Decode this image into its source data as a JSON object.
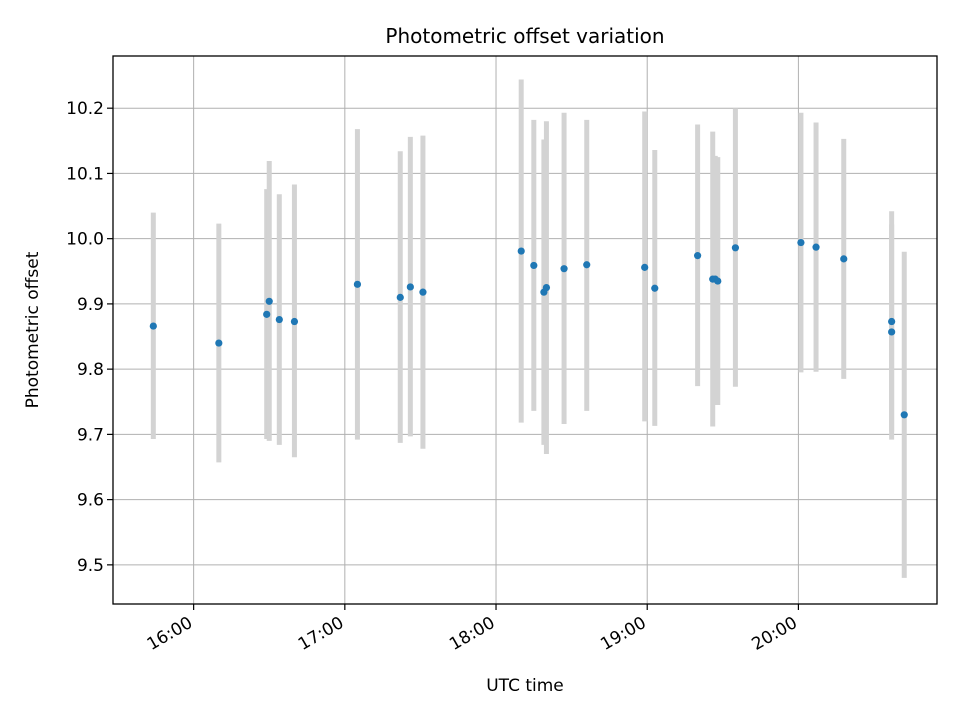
{
  "chart_data": {
    "type": "scatter",
    "title": "Photometric offset variation",
    "xlabel": "UTC time",
    "ylabel": "Photometric offset",
    "x_ticks": [
      "16:00",
      "17:00",
      "18:00",
      "19:00",
      "20:00"
    ],
    "y_ticks": [
      "9.5",
      "9.6",
      "9.7",
      "9.8",
      "9.9",
      "10.0",
      "10.1",
      "10.2"
    ],
    "xlim": [
      "15:28",
      "20:55"
    ],
    "ylim": [
      9.44,
      10.28
    ],
    "grid": true,
    "colors": {
      "marker": "#1f77b4",
      "errorbar": "#d3d3d3",
      "grid": "#b0b0b0"
    },
    "points": [
      {
        "x": "15:44",
        "y": 9.866,
        "y_low": 9.693,
        "y_high": 10.04
      },
      {
        "x": "16:10",
        "y": 9.84,
        "y_low": 9.657,
        "y_high": 10.023
      },
      {
        "x": "16:29",
        "y": 9.884,
        "y_low": 9.693,
        "y_high": 10.076
      },
      {
        "x": "16:30",
        "y": 9.904,
        "y_low": 9.69,
        "y_high": 10.119
      },
      {
        "x": "16:34",
        "y": 9.876,
        "y_low": 9.684,
        "y_high": 10.068
      },
      {
        "x": "16:40",
        "y": 9.873,
        "y_low": 9.665,
        "y_high": 10.083
      },
      {
        "x": "17:05",
        "y": 9.93,
        "y_low": 9.692,
        "y_high": 10.168
      },
      {
        "x": "17:22",
        "y": 9.91,
        "y_low": 9.687,
        "y_high": 10.134
      },
      {
        "x": "17:26",
        "y": 9.926,
        "y_low": 9.697,
        "y_high": 10.156
      },
      {
        "x": "17:31",
        "y": 9.918,
        "y_low": 9.678,
        "y_high": 10.158
      },
      {
        "x": "18:10",
        "y": 9.981,
        "y_low": 9.718,
        "y_high": 10.244
      },
      {
        "x": "18:15",
        "y": 9.959,
        "y_low": 9.736,
        "y_high": 10.182
      },
      {
        "x": "18:19",
        "y": 9.918,
        "y_low": 9.684,
        "y_high": 10.152
      },
      {
        "x": "18:20",
        "y": 9.925,
        "y_low": 9.67,
        "y_high": 10.18
      },
      {
        "x": "18:27",
        "y": 9.954,
        "y_low": 9.716,
        "y_high": 10.193
      },
      {
        "x": "18:36",
        "y": 9.96,
        "y_low": 9.736,
        "y_high": 10.182
      },
      {
        "x": "18:59",
        "y": 9.956,
        "y_low": 9.72,
        "y_high": 10.195
      },
      {
        "x": "19:03",
        "y": 9.924,
        "y_low": 9.713,
        "y_high": 10.136
      },
      {
        "x": "19:20",
        "y": 9.974,
        "y_low": 9.774,
        "y_high": 10.175
      },
      {
        "x": "19:26",
        "y": 9.938,
        "y_low": 9.712,
        "y_high": 10.164
      },
      {
        "x": "19:27",
        "y": 9.938,
        "y_low": 9.745,
        "y_high": 10.127
      },
      {
        "x": "19:28",
        "y": 9.935,
        "y_low": 9.745,
        "y_high": 10.125
      },
      {
        "x": "19:35",
        "y": 9.986,
        "y_low": 9.773,
        "y_high": 10.2
      },
      {
        "x": "20:01",
        "y": 9.994,
        "y_low": 9.795,
        "y_high": 10.193
      },
      {
        "x": "20:07",
        "y": 9.987,
        "y_low": 9.796,
        "y_high": 10.178
      },
      {
        "x": "20:18",
        "y": 9.969,
        "y_low": 9.785,
        "y_high": 10.153
      },
      {
        "x": "20:37",
        "y": 9.873,
        "y_low": 9.704,
        "y_high": 10.042
      },
      {
        "x": "20:37",
        "y": 9.857,
        "y_low": 9.692,
        "y_high": 10.022
      },
      {
        "x": "20:42",
        "y": 9.73,
        "y_low": 9.48,
        "y_high": 9.98
      }
    ]
  }
}
